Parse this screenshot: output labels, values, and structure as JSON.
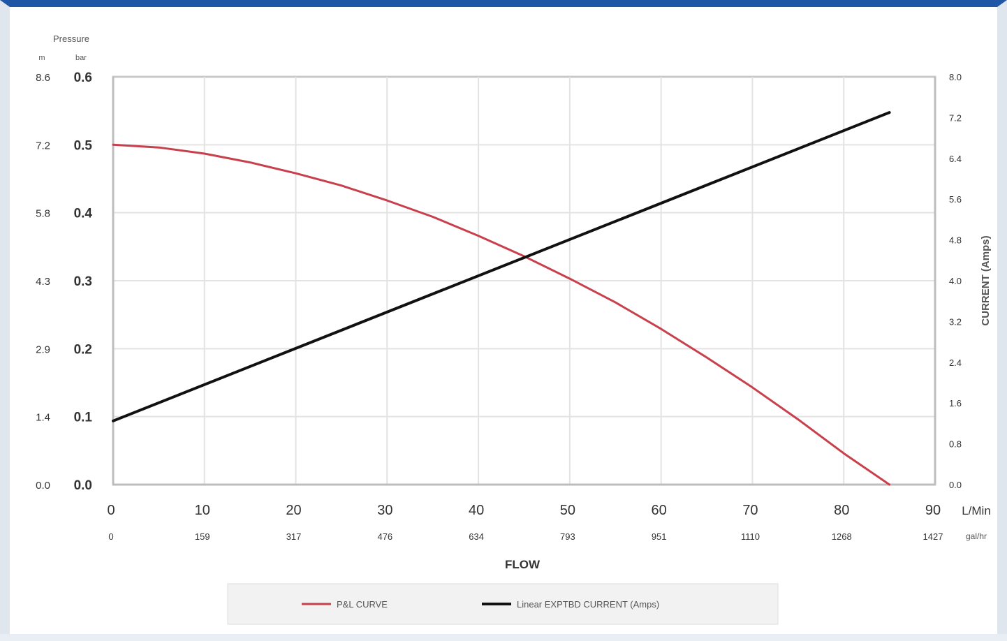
{
  "chart_data": {
    "type": "line",
    "title": "",
    "x_axis": {
      "label": "FLOW",
      "unit_primary": "L/Min",
      "unit_secondary": "gal/hr",
      "ticks": [
        0,
        10,
        20,
        30,
        40,
        50,
        60,
        70,
        80,
        90
      ],
      "secondary_ticks": [
        "0",
        "159",
        "317",
        "476",
        "634",
        "793",
        "951",
        "1110",
        "1268",
        "1427"
      ],
      "range": [
        0,
        90
      ]
    },
    "y_left": {
      "label": "Pressure",
      "unit_1": "m",
      "unit_2": "bar",
      "ticks_bar": [
        "0.0",
        "0.1",
        "0.2",
        "0.3",
        "0.4",
        "0.5",
        "0.6"
      ],
      "ticks_m": [
        "0.0",
        "1.4",
        "2.9",
        "4.3",
        "5.8",
        "7.2",
        "8.6"
      ],
      "range": [
        0,
        0.6
      ]
    },
    "y_right": {
      "label": "CURRENT (Amps)",
      "ticks": [
        "0.0",
        "0.8",
        "1.6",
        "2.4",
        "3.2",
        "4.0",
        "4.8",
        "5.6",
        "6.4",
        "7.2",
        "8.0"
      ],
      "range": [
        0,
        8
      ]
    },
    "series": [
      {
        "name": "P&L CURVE",
        "axis": "left",
        "color": "#c8404b",
        "x": [
          0,
          5,
          10,
          15,
          20,
          25,
          30,
          35,
          40,
          45,
          50,
          55,
          60,
          65,
          70,
          75,
          80,
          85
        ],
        "y": [
          0.5,
          0.496,
          0.487,
          0.474,
          0.458,
          0.44,
          0.418,
          0.394,
          0.366,
          0.336,
          0.303,
          0.268,
          0.229,
          0.187,
          0.143,
          0.096,
          0.046,
          0.0
        ]
      },
      {
        "name": "Linear EXPTBD CURRENT (Amps)",
        "axis": "right",
        "color": "#111111",
        "x": [
          0,
          85
        ],
        "y": [
          1.25,
          7.3
        ]
      }
    ],
    "grid": true,
    "legend_position": "bottom-center"
  }
}
